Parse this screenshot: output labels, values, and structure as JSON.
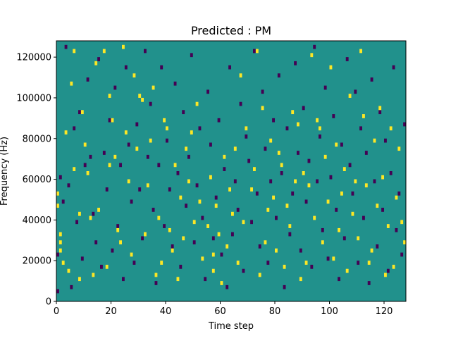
{
  "chart_data": {
    "type": "heatmap",
    "title": "Predicted : PM",
    "xlabel": "Time step",
    "ylabel": "Frequency (Hz)",
    "xlim": [
      0,
      128
    ],
    "ylim": [
      0,
      128000
    ],
    "x_ticks": [
      0,
      20,
      40,
      60,
      80,
      100,
      120
    ],
    "x_tick_labels": [
      "0",
      "20",
      "40",
      "60",
      "80",
      "100",
      "120"
    ],
    "y_ticks": [
      0,
      20000,
      40000,
      60000,
      80000,
      100000,
      120000
    ],
    "y_tick_labels": [
      "0",
      "20000",
      "40000",
      "60000",
      "80000",
      "100000",
      "120000"
    ],
    "n_time_steps": 128,
    "n_freq_bins": 64,
    "colormap": "viridis",
    "colors": {
      "background": "#21918c",
      "high": "#fde725",
      "low": "#440154"
    },
    "values": {
      "background": 0,
      "high": 1,
      "low": -1
    },
    "high_cells": [
      [
        0,
        23
      ],
      [
        0,
        26
      ],
      [
        1,
        16
      ],
      [
        1,
        14
      ],
      [
        1,
        12
      ],
      [
        2,
        9
      ],
      [
        3,
        41
      ],
      [
        4,
        7
      ],
      [
        5,
        53
      ],
      [
        6,
        61
      ],
      [
        6,
        32
      ],
      [
        8,
        5
      ],
      [
        8,
        21
      ],
      [
        9,
        46
      ],
      [
        10,
        38
      ],
      [
        11,
        31
      ],
      [
        12,
        20
      ],
      [
        13,
        6
      ],
      [
        14,
        58
      ],
      [
        15,
        22
      ],
      [
        17,
        61
      ],
      [
        18,
        8
      ],
      [
        19,
        33
      ],
      [
        19,
        50
      ],
      [
        20,
        44
      ],
      [
        21,
        35
      ],
      [
        22,
        17
      ],
      [
        23,
        14
      ],
      [
        24,
        62
      ],
      [
        25,
        41
      ],
      [
        26,
        29
      ],
      [
        27,
        11
      ],
      [
        28,
        55
      ],
      [
        29,
        37
      ],
      [
        30,
        50
      ],
      [
        31,
        49
      ],
      [
        32,
        16
      ],
      [
        33,
        28
      ],
      [
        34,
        39
      ],
      [
        35,
        52
      ],
      [
        36,
        6
      ],
      [
        37,
        20
      ],
      [
        38,
        9
      ],
      [
        39,
        44
      ],
      [
        40,
        42
      ],
      [
        41,
        17
      ],
      [
        42,
        12
      ],
      [
        43,
        33
      ],
      [
        44,
        5
      ],
      [
        45,
        25
      ],
      [
        46,
        15
      ],
      [
        47,
        37
      ],
      [
        48,
        29
      ],
      [
        49,
        41
      ],
      [
        50,
        19
      ],
      [
        51,
        48
      ],
      [
        52,
        24
      ],
      [
        53,
        10
      ],
      [
        55,
        18
      ],
      [
        56,
        30
      ],
      [
        57,
        7
      ],
      [
        57,
        11
      ],
      [
        58,
        23
      ],
      [
        59,
        16
      ],
      [
        60,
        4
      ],
      [
        61,
        35
      ],
      [
        62,
        13
      ],
      [
        63,
        27
      ],
      [
        64,
        21
      ],
      [
        65,
        37
      ],
      [
        66,
        9
      ],
      [
        67,
        55
      ],
      [
        68,
        19
      ],
      [
        69,
        42
      ],
      [
        71,
        27
      ],
      [
        72,
        32
      ],
      [
        73,
        61
      ],
      [
        74,
        6
      ],
      [
        75,
        47
      ],
      [
        76,
        14
      ],
      [
        77,
        22
      ],
      [
        78,
        39
      ],
      [
        79,
        25
      ],
      [
        80,
        12
      ],
      [
        81,
        36
      ],
      [
        82,
        33
      ],
      [
        83,
        8
      ],
      [
        84,
        23
      ],
      [
        85,
        18
      ],
      [
        86,
        46
      ],
      [
        87,
        29
      ],
      [
        88,
        43
      ],
      [
        89,
        5
      ],
      [
        90,
        31
      ],
      [
        91,
        9
      ],
      [
        92,
        28
      ],
      [
        93,
        60
      ],
      [
        94,
        20
      ],
      [
        95,
        44
      ],
      [
        96,
        42
      ],
      [
        97,
        14
      ],
      [
        98,
        35
      ],
      [
        99,
        24
      ],
      [
        100,
        57
      ],
      [
        101,
        10
      ],
      [
        102,
        38
      ],
      [
        103,
        17
      ],
      [
        104,
        26
      ],
      [
        105,
        32
      ],
      [
        106,
        7
      ],
      [
        107,
        50
      ],
      [
        108,
        21
      ],
      [
        109,
        29
      ],
      [
        110,
        15
      ],
      [
        111,
        61
      ],
      [
        112,
        45
      ],
      [
        113,
        28
      ],
      [
        114,
        9
      ],
      [
        115,
        12
      ],
      [
        116,
        39
      ],
      [
        117,
        23
      ],
      [
        118,
        47
      ],
      [
        119,
        30
      ],
      [
        120,
        6
      ],
      [
        121,
        18
      ],
      [
        122,
        42
      ],
      [
        123,
        8
      ],
      [
        124,
        25
      ],
      [
        125,
        37
      ],
      [
        126,
        19
      ],
      [
        127,
        14
      ]
    ],
    "low_cells": [
      [
        0,
        2
      ],
      [
        0,
        11
      ],
      [
        1,
        30
      ],
      [
        2,
        24
      ],
      [
        3,
        62
      ],
      [
        4,
        28
      ],
      [
        5,
        3
      ],
      [
        6,
        42
      ],
      [
        7,
        19
      ],
      [
        8,
        46
      ],
      [
        9,
        10
      ],
      [
        10,
        33
      ],
      [
        11,
        54
      ],
      [
        12,
        35
      ],
      [
        13,
        21
      ],
      [
        14,
        14
      ],
      [
        15,
        59
      ],
      [
        16,
        8
      ],
      [
        17,
        36
      ],
      [
        18,
        27
      ],
      [
        19,
        44
      ],
      [
        20,
        12
      ],
      [
        21,
        52
      ],
      [
        22,
        18
      ],
      [
        23,
        33
      ],
      [
        24,
        5
      ],
      [
        25,
        57
      ],
      [
        26,
        38
      ],
      [
        27,
        24
      ],
      [
        28,
        9
      ],
      [
        29,
        43
      ],
      [
        30,
        27
      ],
      [
        31,
        15
      ],
      [
        32,
        61
      ],
      [
        33,
        35
      ],
      [
        34,
        48
      ],
      [
        35,
        22
      ],
      [
        36,
        4
      ],
      [
        37,
        33
      ],
      [
        38,
        57
      ],
      [
        39,
        18
      ],
      [
        40,
        39
      ],
      [
        41,
        27
      ],
      [
        42,
        13
      ],
      [
        43,
        53
      ],
      [
        44,
        31
      ],
      [
        45,
        8
      ],
      [
        46,
        46
      ],
      [
        47,
        23
      ],
      [
        48,
        35
      ],
      [
        49,
        60
      ],
      [
        50,
        14
      ],
      [
        51,
        28
      ],
      [
        52,
        42
      ],
      [
        53,
        20
      ],
      [
        54,
        5
      ],
      [
        55,
        51
      ],
      [
        56,
        38
      ],
      [
        57,
        15
      ],
      [
        58,
        25
      ],
      [
        59,
        44
      ],
      [
        60,
        11
      ],
      [
        61,
        32
      ],
      [
        62,
        3
      ],
      [
        63,
        57
      ],
      [
        64,
        16
      ],
      [
        65,
        29
      ],
      [
        66,
        22
      ],
      [
        67,
        48
      ],
      [
        68,
        7
      ],
      [
        69,
        40
      ],
      [
        70,
        34
      ],
      [
        71,
        19
      ],
      [
        72,
        61
      ],
      [
        73,
        26
      ],
      [
        74,
        13
      ],
      [
        75,
        51
      ],
      [
        76,
        37
      ],
      [
        77,
        9
      ],
      [
        78,
        29
      ],
      [
        79,
        44
      ],
      [
        80,
        20
      ],
      [
        81,
        55
      ],
      [
        82,
        31
      ],
      [
        83,
        3
      ],
      [
        84,
        42
      ],
      [
        85,
        16
      ],
      [
        86,
        26
      ],
      [
        87,
        58
      ],
      [
        88,
        36
      ],
      [
        89,
        12
      ],
      [
        90,
        47
      ],
      [
        91,
        24
      ],
      [
        92,
        34
      ],
      [
        93,
        8
      ],
      [
        94,
        62
      ],
      [
        95,
        29
      ],
      [
        96,
        40
      ],
      [
        97,
        17
      ],
      [
        98,
        52
      ],
      [
        99,
        10
      ],
      [
        100,
        30
      ],
      [
        101,
        45
      ],
      [
        102,
        22
      ],
      [
        103,
        5
      ],
      [
        104,
        38
      ],
      [
        105,
        15
      ],
      [
        106,
        59
      ],
      [
        107,
        33
      ],
      [
        108,
        26
      ],
      [
        109,
        51
      ],
      [
        110,
        9
      ],
      [
        111,
        42
      ],
      [
        112,
        20
      ],
      [
        113,
        36
      ],
      [
        114,
        4
      ],
      [
        115,
        54
      ],
      [
        116,
        29
      ],
      [
        117,
        13
      ],
      [
        118,
        46
      ],
      [
        119,
        22
      ],
      [
        120,
        39
      ],
      [
        121,
        7
      ],
      [
        122,
        31
      ],
      [
        123,
        57
      ],
      [
        124,
        17
      ],
      [
        125,
        26
      ],
      [
        126,
        11
      ],
      [
        127,
        43
      ]
    ]
  }
}
